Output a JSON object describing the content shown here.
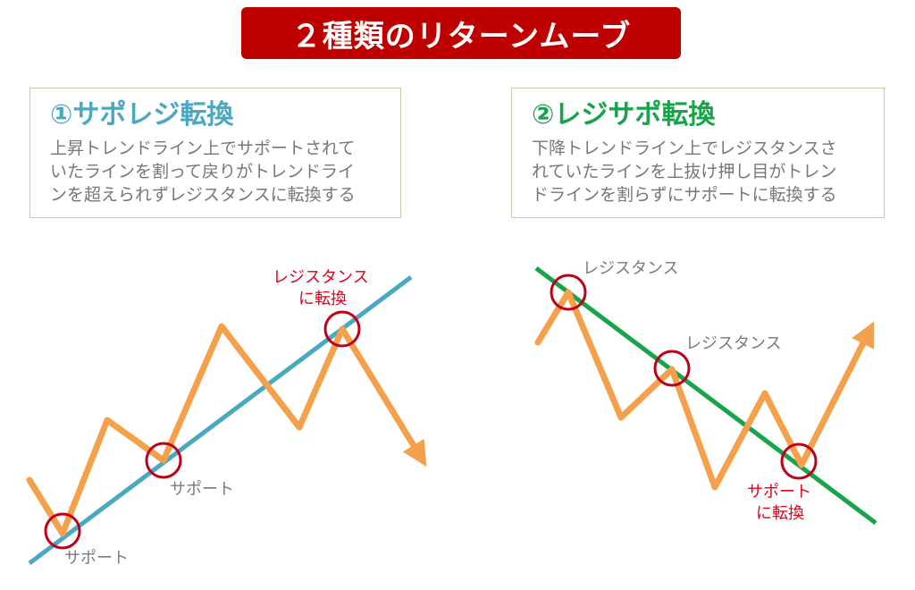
{
  "title": "２種類のリターンムーブ",
  "left_panel": {
    "heading": "①サポレジ転換",
    "description": [
      "上昇トレンドライン上でサポートされて",
      "いたラインを割って戻りがトレンドライ",
      "ンを超えられずレジスタンスに転換する"
    ],
    "labels": {
      "support_1": "サポート",
      "support_2": "サポート",
      "converted": [
        "レジスタンス",
        "に転換"
      ]
    }
  },
  "right_panel": {
    "heading": "②レジサポ転換",
    "description": [
      "下降トレンドライン上でレジスタンスさ",
      "れていたラインを上抜け押し目がトレン",
      "ドラインを割らずにサポートに転換する"
    ],
    "labels": {
      "resistance_1": "レジスタンス",
      "resistance_2": "レジスタンス",
      "converted": [
        "サポート",
        "に転換"
      ]
    }
  },
  "colors": {
    "banner": "#bf0000",
    "price_line": "#f5a04a",
    "uptrend_line": "#4aa8c0",
    "downtrend_line": "#17a34a",
    "marker": "#c0001a"
  }
}
